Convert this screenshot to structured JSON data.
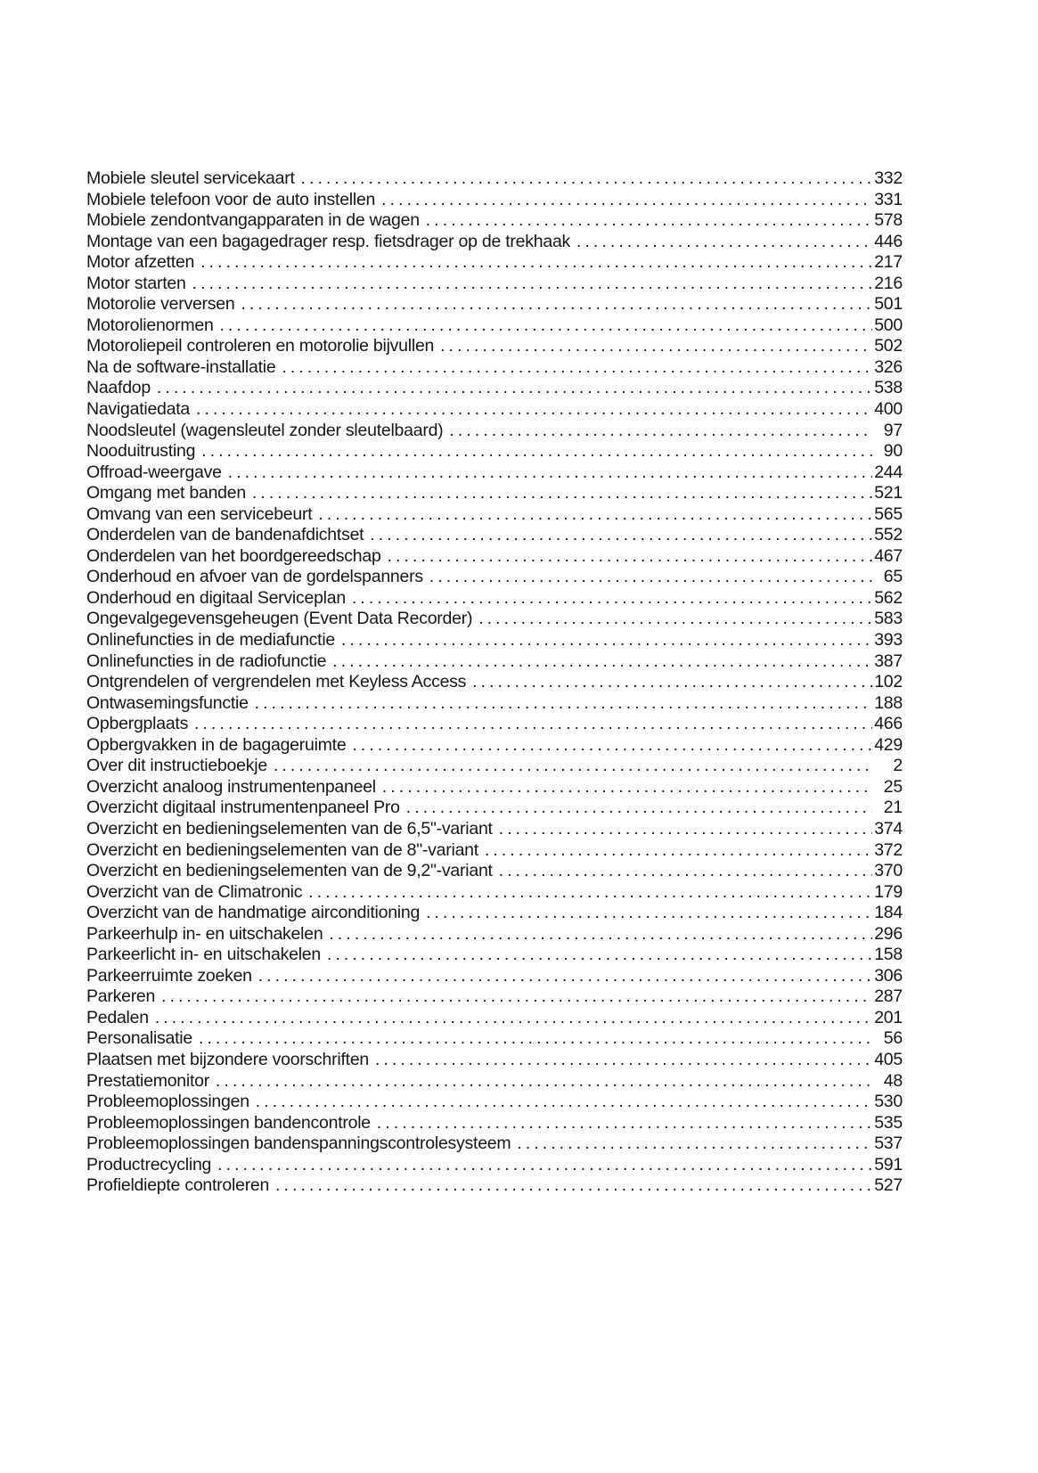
{
  "page": {
    "background": "#ffffff",
    "text_color": "#161616"
  },
  "toc": {
    "entries": [
      {
        "title": "Mobiele sleutel servicekaart",
        "page": "332"
      },
      {
        "title": "Mobiele telefoon voor de auto instellen",
        "page": "331"
      },
      {
        "title": "Mobiele zendontvangapparaten in de wagen",
        "page": "578"
      },
      {
        "title": "Montage van een bagagedrager resp. fietsdrager op de trekhaak",
        "page": "446"
      },
      {
        "title": "Motor afzetten",
        "page": "217"
      },
      {
        "title": "Motor starten",
        "page": "216"
      },
      {
        "title": "Motorolie verversen",
        "page": "501"
      },
      {
        "title": "Motorolienormen",
        "page": "500"
      },
      {
        "title": "Motoroliepeil controleren en motorolie bijvullen",
        "page": "502"
      },
      {
        "title": "Na de software-installatie",
        "page": "326"
      },
      {
        "title": "Naafdop",
        "page": "538"
      },
      {
        "title": "Navigatiedata",
        "page": "400"
      },
      {
        "title": "Noodsleutel (wagensleutel zonder sleutelbaard)",
        "page": "97"
      },
      {
        "title": "Nooduitrusting",
        "page": "90"
      },
      {
        "title": "Offroad-weergave",
        "page": "244"
      },
      {
        "title": "Omgang met banden",
        "page": "521"
      },
      {
        "title": "Omvang van een servicebeurt",
        "page": "565"
      },
      {
        "title": "Onderdelen van de bandenafdichtset",
        "page": "552"
      },
      {
        "title": "Onderdelen van het boordgereedschap",
        "page": "467"
      },
      {
        "title": "Onderhoud en afvoer van de gordelspanners",
        "page": "65"
      },
      {
        "title": "Onderhoud en digitaal Serviceplan",
        "page": "562"
      },
      {
        "title": "Ongevalgegevensgeheugen (Event Data Recorder)",
        "page": "583"
      },
      {
        "title": "Onlinefuncties in de mediafunctie",
        "page": "393"
      },
      {
        "title": "Onlinefuncties in de radiofunctie",
        "page": "387"
      },
      {
        "title": "Ontgrendelen of vergrendelen met Keyless Access",
        "page": "102"
      },
      {
        "title": "Ontwasemingsfunctie",
        "page": "188"
      },
      {
        "title": "Opbergplaats",
        "page": "466"
      },
      {
        "title": "Opbergvakken in de bagageruimte",
        "page": "429"
      },
      {
        "title": "Over dit instructieboekje",
        "page": "2"
      },
      {
        "title": "Overzicht analoog instrumentenpaneel",
        "page": "25"
      },
      {
        "title": "Overzicht digitaal instrumentenpaneel Pro",
        "page": "21"
      },
      {
        "title": "Overzicht en bedieningselementen van de 6,5\"-variant",
        "page": "374"
      },
      {
        "title": "Overzicht en bedieningselementen van de 8\"-variant",
        "page": "372"
      },
      {
        "title": "Overzicht en bedieningselementen van de 9,2\"-variant",
        "page": "370"
      },
      {
        "title": "Overzicht van de Climatronic",
        "page": "179"
      },
      {
        "title": "Overzicht van de handmatige airconditioning",
        "page": "184"
      },
      {
        "title": "Parkeerhulp in- en uitschakelen",
        "page": "296"
      },
      {
        "title": "Parkeerlicht in- en uitschakelen",
        "page": "158"
      },
      {
        "title": "Parkeerruimte zoeken",
        "page": "306"
      },
      {
        "title": "Parkeren",
        "page": "287"
      },
      {
        "title": "Pedalen",
        "page": "201"
      },
      {
        "title": "Personalisatie",
        "page": "56"
      },
      {
        "title": "Plaatsen met bijzondere voorschriften",
        "page": "405"
      },
      {
        "title": "Prestatiemonitor",
        "page": "48"
      },
      {
        "title": "Probleemoplossingen",
        "page": "530"
      },
      {
        "title": "Probleemoplossingen bandencontrole",
        "page": "535"
      },
      {
        "title": "Probleemoplossingen bandenspanningscontrolesysteem",
        "page": "537"
      },
      {
        "title": "Productrecycling",
        "page": "591"
      },
      {
        "title": "Profieldiepte controleren",
        "page": "527"
      }
    ]
  }
}
